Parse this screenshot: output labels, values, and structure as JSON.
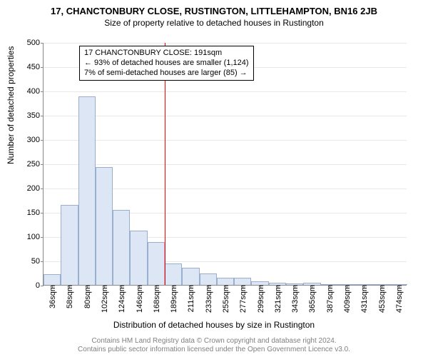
{
  "title": "17, CHANCTONBURY CLOSE, RUSTINGTON, LITTLEHAMPTON, BN16 2JB",
  "subtitle": "Size of property relative to detached houses in Rustington",
  "chart": {
    "type": "histogram",
    "y_label": "Number of detached properties",
    "x_label": "Distribution of detached houses by size in Rustington",
    "y_min": 0,
    "y_max": 500,
    "y_tick_step": 50,
    "x_categories": [
      "36sqm",
      "58sqm",
      "80sqm",
      "102sqm",
      "124sqm",
      "146sqm",
      "168sqm",
      "189sqm",
      "211sqm",
      "233sqm",
      "255sqm",
      "277sqm",
      "299sqm",
      "321sqm",
      "343sqm",
      "365sqm",
      "387sqm",
      "409sqm",
      "431sqm",
      "453sqm",
      "474sqm"
    ],
    "values": [
      22,
      165,
      388,
      243,
      155,
      112,
      88,
      44,
      36,
      23,
      14,
      14,
      7,
      5,
      3,
      5,
      2,
      2,
      2,
      1,
      0
    ],
    "bar_fill": "#dde6f5",
    "bar_stroke": "#9aaed0",
    "grid_color": "#e8e8e8",
    "axis_color": "#888888",
    "background": "#ffffff",
    "tick_fontsize": 11,
    "label_fontsize": 12,
    "title_fontsize": 13,
    "subtitle_fontsize": 12,
    "reference": {
      "position_index": 7,
      "color": "#ff0000",
      "lines": [
        "17 CHANCTONBURY CLOSE: 191sqm",
        "← 93% of detached houses are smaller (1,124)",
        "7% of semi-detached houses are larger (85) →"
      ],
      "box_fontsize": 11
    }
  },
  "footer": {
    "line1": "Contains HM Land Registry data © Crown copyright and database right 2024.",
    "line2": "Contains public sector information licensed under the Open Government Licence v3.0.",
    "fontsize": 10,
    "color": "#808080"
  }
}
